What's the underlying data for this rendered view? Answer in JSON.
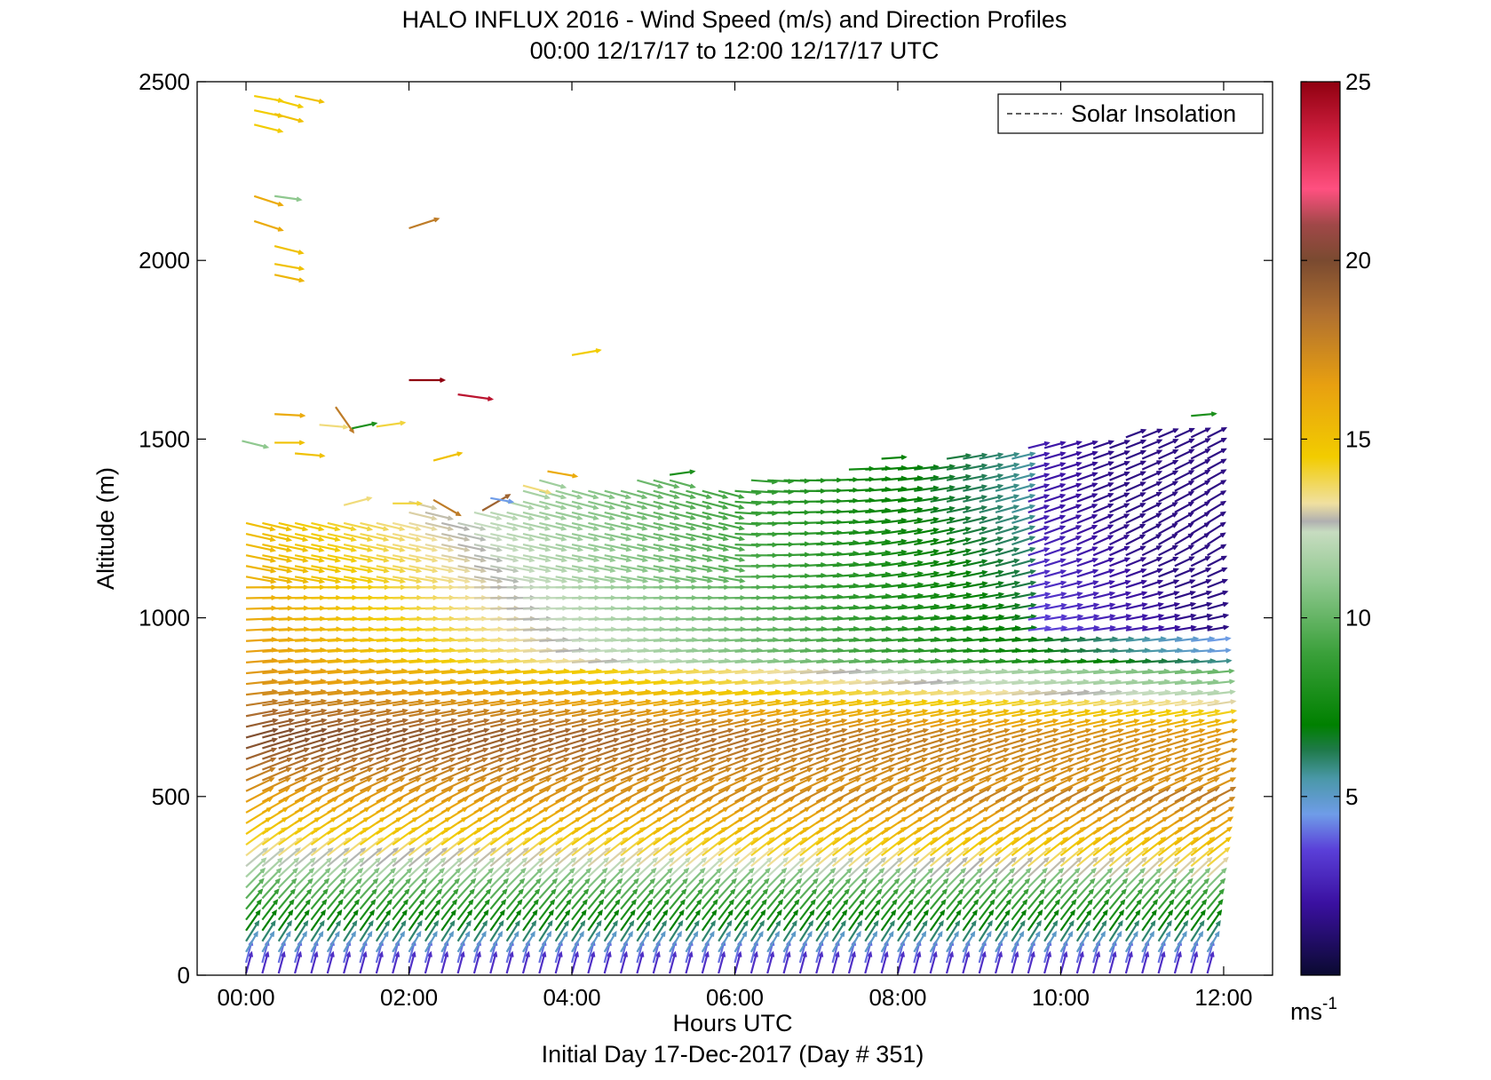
{
  "chart_data": {
    "type": "quiver",
    "title": "HALO INFLUX 2016 - Wind Speed (m/s) and Direction Profiles",
    "subtitle": "00:00 12/17/17 to 12:00 12/17/17  UTC",
    "xlabel": "Hours UTC",
    "footer": "Initial Day 17-Dec-2017 (Day # 351)",
    "ylabel": "Altitude (m)",
    "xlim": [
      -0.6,
      12.6
    ],
    "ylim": [
      0,
      2500
    ],
    "x_ticks": [
      "00:00",
      "02:00",
      "04:00",
      "06:00",
      "08:00",
      "10:00",
      "12:00"
    ],
    "x_tick_values": [
      0,
      2,
      4,
      6,
      8,
      10,
      12
    ],
    "y_ticks": [
      "0",
      "500",
      "1000",
      "1500",
      "2000",
      "2500"
    ],
    "y_tick_values": [
      0,
      500,
      1000,
      1500,
      2000,
      2500
    ],
    "legend": {
      "label": "Solar Insolation",
      "position": "top-right",
      "style": "dashed"
    },
    "colorbar": {
      "min": 0,
      "max": 25,
      "ticks": [
        "5",
        "10",
        "15",
        "20",
        "25"
      ],
      "tick_values": [
        5,
        10,
        15,
        20,
        25
      ],
      "unit_base": "ms",
      "unit_exp": "-1",
      "stops": [
        {
          "v": 0,
          "c": "#0a0a30"
        },
        {
          "v": 2,
          "c": "#3a10a0"
        },
        {
          "v": 3.5,
          "c": "#5a3fd8"
        },
        {
          "v": 4.5,
          "c": "#6f9ce8"
        },
        {
          "v": 5.5,
          "c": "#4a98a8"
        },
        {
          "v": 6.3,
          "c": "#1f7a4a"
        },
        {
          "v": 7,
          "c": "#008000"
        },
        {
          "v": 9,
          "c": "#3aa03a"
        },
        {
          "v": 11,
          "c": "#8fc88f"
        },
        {
          "v": 12.4,
          "c": "#c7dcc0"
        },
        {
          "v": 12.7,
          "c": "#b0b0b0"
        },
        {
          "v": 13.2,
          "c": "#f0e0a0"
        },
        {
          "v": 14.5,
          "c": "#f2cc00"
        },
        {
          "v": 16.5,
          "c": "#e8a010"
        },
        {
          "v": 18.5,
          "c": "#b07030"
        },
        {
          "v": 20,
          "c": "#7a4a30"
        },
        {
          "v": 21,
          "c": "#a04848"
        },
        {
          "v": 22,
          "c": "#ff5080"
        },
        {
          "v": 23.5,
          "c": "#d02040"
        },
        {
          "v": 25,
          "c": "#900010"
        }
      ]
    },
    "profile_times_hours": [
      0,
      0.2,
      0.4,
      0.6,
      0.8,
      1.0,
      1.2,
      1.4,
      1.6,
      1.8,
      2.0,
      2.2,
      2.4,
      2.6,
      2.8,
      3.0,
      3.2,
      3.4,
      3.6,
      3.8,
      4.0,
      4.2,
      4.4,
      4.6,
      4.8,
      5.0,
      5.2,
      5.4,
      5.6,
      5.8,
      6.0,
      6.2,
      6.4,
      6.6,
      6.8,
      7.0,
      7.2,
      7.4,
      7.6,
      7.8,
      8.0,
      8.2,
      8.4,
      8.6,
      8.8,
      9.0,
      9.2,
      9.4,
      9.6,
      9.8,
      10.0,
      10.2,
      10.4,
      10.6,
      10.8,
      11.0,
      11.2,
      11.4,
      11.6,
      11.8
    ],
    "profile_altitudes_m": [
      0,
      30,
      60,
      90,
      120,
      150,
      180,
      210,
      240,
      270,
      300,
      330,
      360,
      390,
      420,
      450,
      480,
      510,
      540,
      570,
      600,
      630,
      660,
      690,
      720,
      750,
      780,
      810,
      840,
      870,
      900,
      930,
      960,
      990,
      1020,
      1050,
      1080,
      1110,
      1140,
      1170,
      1200,
      1230,
      1260,
      1290,
      1320,
      1350,
      1380,
      1410,
      1440,
      1470,
      1500,
      1530,
      1560
    ],
    "profile_top_altitude_m": [
      1280,
      1280,
      1280,
      1280,
      1280,
      1280,
      1280,
      1280,
      1280,
      1280,
      1320,
      1300,
      1280,
      1270,
      1290,
      1310,
      1330,
      1360,
      1380,
      1370,
      1360,
      1360,
      1360,
      1360,
      1380,
      1400,
      1380,
      1360,
      1360,
      1360,
      1370,
      1380,
      1390,
      1400,
      1400,
      1390,
      1400,
      1410,
      1420,
      1440,
      1420,
      1420,
      1430,
      1440,
      1450,
      1450,
      1450,
      1460,
      1470,
      1480,
      1480,
      1490,
      1490,
      1490,
      1500,
      1500,
      1500,
      1510,
      1520,
      1520
    ],
    "speed_profile_by_altitude": [
      {
        "alt_m": 0,
        "speed_ms": 3
      },
      {
        "alt_m": 120,
        "speed_ms": 7
      },
      {
        "alt_m": 250,
        "speed_ms": 11
      },
      {
        "alt_m": 350,
        "speed_ms": 14
      },
      {
        "alt_m": 500,
        "speed_ms": 17
      },
      {
        "alt_m": 650,
        "speed_ms": 20
      },
      {
        "alt_m": 800,
        "speed_ms": 17
      },
      {
        "alt_m": 1000,
        "speed_ms": 16
      },
      {
        "alt_m": 1300,
        "speed_ms": 15
      }
    ],
    "upper_vectors": [
      {
        "t": 0.1,
        "alt": 2460,
        "speed": 14.5,
        "dir_deg": -10
      },
      {
        "t": 0.1,
        "alt": 2420,
        "speed": 14.5,
        "dir_deg": -12
      },
      {
        "t": 0.1,
        "alt": 2380,
        "speed": 14.5,
        "dir_deg": -14
      },
      {
        "t": 0.35,
        "alt": 2450,
        "speed": 14.5,
        "dir_deg": -15
      },
      {
        "t": 0.35,
        "alt": 2410,
        "speed": 15,
        "dir_deg": -15
      },
      {
        "t": 0.6,
        "alt": 2460,
        "speed": 15,
        "dir_deg": -12
      },
      {
        "t": 0.1,
        "alt": 2180,
        "speed": 16,
        "dir_deg": -18
      },
      {
        "t": 0.1,
        "alt": 2110,
        "speed": 16,
        "dir_deg": -18
      },
      {
        "t": 0.35,
        "alt": 2180,
        "speed": 11,
        "dir_deg": -8
      },
      {
        "t": 0.35,
        "alt": 2040,
        "speed": 15,
        "dir_deg": -14
      },
      {
        "t": 0.35,
        "alt": 1990,
        "speed": 15,
        "dir_deg": -10
      },
      {
        "t": 0.35,
        "alt": 1960,
        "speed": 15.5,
        "dir_deg": -12
      },
      {
        "t": 2.0,
        "alt": 2090,
        "speed": 18,
        "dir_deg": 18
      },
      {
        "t": 4.0,
        "alt": 1735,
        "speed": 14.5,
        "dir_deg": 10
      },
      {
        "t": 2.0,
        "alt": 1665,
        "speed": 25,
        "dir_deg": 0
      },
      {
        "t": 2.6,
        "alt": 1625,
        "speed": 24,
        "dir_deg": -8
      },
      {
        "t": 1.1,
        "alt": 1590,
        "speed": 18,
        "dir_deg": -55
      },
      {
        "t": 0.35,
        "alt": 1570,
        "speed": 16,
        "dir_deg": -3
      },
      {
        "t": 0.9,
        "alt": 1540,
        "speed": 13.5,
        "dir_deg": -5
      },
      {
        "t": 1.3,
        "alt": 1530,
        "speed": 8,
        "dir_deg": 12
      },
      {
        "t": 1.6,
        "alt": 1535,
        "speed": 14,
        "dir_deg": 8
      },
      {
        "t": -0.05,
        "alt": 1495,
        "speed": 11,
        "dir_deg": -14
      },
      {
        "t": 0.35,
        "alt": 1490,
        "speed": 15,
        "dir_deg": 0
      },
      {
        "t": 0.6,
        "alt": 1460,
        "speed": 15,
        "dir_deg": -5
      },
      {
        "t": 2.3,
        "alt": 1440,
        "speed": 15,
        "dir_deg": 15
      },
      {
        "t": 3.7,
        "alt": 1410,
        "speed": 16,
        "dir_deg": -10
      },
      {
        "t": 2.3,
        "alt": 1330,
        "speed": 18,
        "dir_deg": -30
      },
      {
        "t": 2.9,
        "alt": 1300,
        "speed": 19,
        "dir_deg": 30
      },
      {
        "t": 1.2,
        "alt": 1315,
        "speed": 13.5,
        "dir_deg": 15
      },
      {
        "t": 1.8,
        "alt": 1320,
        "speed": 14,
        "dir_deg": 0
      },
      {
        "t": 3.0,
        "alt": 1335,
        "speed": 4.5,
        "dir_deg": -10
      },
      {
        "t": 3.4,
        "alt": 1370,
        "speed": 13.5,
        "dir_deg": -15
      },
      {
        "t": 5.2,
        "alt": 1400,
        "speed": 8,
        "dir_deg": 8
      },
      {
        "t": 11.6,
        "alt": 1565,
        "speed": 8,
        "dir_deg": 5
      }
    ]
  }
}
